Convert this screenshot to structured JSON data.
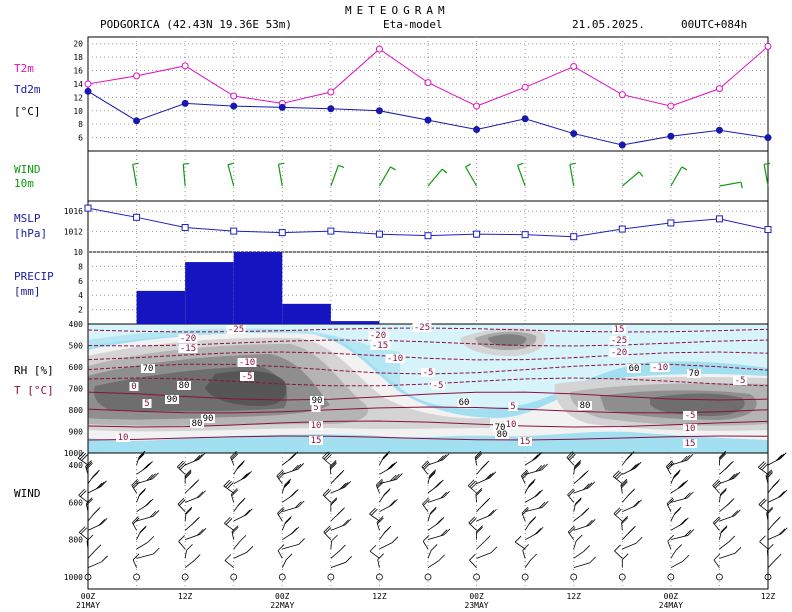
{
  "header": {
    "title": "METEOGRAM",
    "station": "PODGORICA (42.43N 19.36E  53m)",
    "model": "Eta-model",
    "date": "21.05.2025.",
    "run": "00UTC+084h"
  },
  "colors": {
    "t2m": "#e010c0",
    "td2m": "#1818b0",
    "wind_green": "#109a10",
    "mslp": "#2020c0",
    "precip": "#1414c0",
    "temp_contour": "#8a1040",
    "rh_levels": [
      "#d8f4fb",
      "#b4e6f4",
      "#a2dff0",
      "#f2f2f2",
      "#d4d4d4",
      "#b4b4b4",
      "#8e8e8e",
      "#6e6e6e",
      "#565656"
    ]
  },
  "chart_data": [
    {
      "type": "line",
      "panel": "temperature",
      "labels": [
        "T2m",
        "Td2m",
        "[°C]"
      ],
      "x": [
        "00Z",
        "06Z",
        "12Z",
        "18Z",
        "00Z",
        "06Z",
        "12Z",
        "18Z",
        "00Z",
        "06Z",
        "12Z",
        "18Z",
        "00Z",
        "06Z",
        "12Z"
      ],
      "series": [
        {
          "name": "T2m",
          "values": [
            14.0,
            15.2,
            16.7,
            12.2,
            11.1,
            12.8,
            19.2,
            14.2,
            10.7,
            13.5,
            16.6,
            12.4,
            10.7,
            13.3,
            19.6
          ]
        },
        {
          "name": "Td2m",
          "values": [
            12.9,
            8.5,
            11.1,
            10.7,
            10.5,
            10.3,
            10.0,
            8.6,
            7.2,
            8.8,
            6.6,
            4.9,
            6.2,
            7.1,
            6.0
          ]
        }
      ],
      "yticks": [
        6,
        8,
        10,
        12,
        14,
        16,
        18,
        20
      ],
      "ylim": [
        4,
        21
      ]
    },
    {
      "type": "barbs",
      "panel": "wind10m",
      "labels": [
        "WIND",
        "10m"
      ],
      "x": [
        "00Z",
        "06Z",
        "12Z",
        "18Z",
        "00Z",
        "06Z",
        "12Z",
        "18Z",
        "00Z",
        "06Z",
        "12Z",
        "18Z",
        "00Z",
        "06Z",
        "12Z"
      ],
      "speed_kt": [
        0,
        5,
        5,
        5,
        5,
        5,
        5,
        5,
        5,
        5,
        5,
        5,
        5,
        5,
        5
      ],
      "direction_deg": [
        0,
        350,
        355,
        345,
        350,
        20,
        30,
        40,
        330,
        340,
        350,
        50,
        30,
        80,
        350
      ]
    },
    {
      "type": "line",
      "panel": "mslp",
      "labels": [
        "MSLP",
        "[hPa]"
      ],
      "x": [
        "00Z",
        "06Z",
        "12Z",
        "18Z",
        "00Z",
        "06Z",
        "12Z",
        "18Z",
        "00Z",
        "06Z",
        "12Z",
        "18Z",
        "00Z",
        "06Z",
        "12Z"
      ],
      "values": [
        1016.6,
        1014.8,
        1012.8,
        1012.1,
        1011.8,
        1012.1,
        1011.5,
        1011.2,
        1011.5,
        1011.4,
        1011.0,
        1012.5,
        1013.7,
        1014.5,
        1012.4
      ],
      "yticks": [
        1012,
        1016
      ],
      "ylim": [
        1008,
        1018
      ]
    },
    {
      "type": "bar",
      "panel": "precip",
      "labels": [
        "PRECIP",
        "[mm]"
      ],
      "categories": [
        "00-06",
        "06-12",
        "12-18",
        "18-00",
        "00-06",
        "06-12",
        "12-18",
        "18-00",
        "00-06",
        "06-12",
        "12-18",
        "18-00",
        "00-06",
        "06-12"
      ],
      "values": [
        0,
        4.6,
        8.6,
        10.0,
        2.8,
        0.4,
        0,
        0,
        0,
        0,
        0,
        0,
        0,
        0
      ],
      "yticks": [
        2,
        4,
        6,
        8,
        10
      ],
      "ylim": [
        0,
        10
      ]
    },
    {
      "type": "heatmap",
      "panel": "rh_temperature",
      "labels": [
        "RH [%]",
        "T [°C]"
      ],
      "pressure_levels": [
        400,
        500,
        600,
        700,
        800,
        900,
        1000
      ],
      "rh_labels": [
        "70",
        "80",
        "90",
        "90",
        "80",
        "90",
        "60",
        "80",
        "70",
        "80",
        "60",
        "70"
      ],
      "temp_labels": [
        "-25",
        "-20",
        "-15",
        "-10",
        "-5",
        "0",
        "5",
        "10",
        "15",
        "-25",
        "-20",
        "-15",
        "-10",
        "-5",
        "0",
        "-5",
        "10",
        "15",
        "-5",
        "10",
        "15",
        "-25",
        "-20",
        "-15",
        "-10",
        "-5",
        "5",
        "10",
        "15",
        "5",
        "-5",
        "-10"
      ]
    },
    {
      "type": "barbs",
      "panel": "wind_profile",
      "labels": [
        "WIND"
      ],
      "pressure_levels": [
        400,
        600,
        800,
        1000
      ],
      "ytick_labels": [
        "400",
        "600",
        "800",
        "1000"
      ]
    }
  ],
  "xaxis": {
    "ticks": [
      "00Z",
      "12Z",
      "00Z",
      "12Z",
      "00Z",
      "12Z",
      "00Z",
      "12Z"
    ],
    "dates": [
      "21MAY",
      "22MAY",
      "23MAY",
      "24MAY"
    ]
  }
}
